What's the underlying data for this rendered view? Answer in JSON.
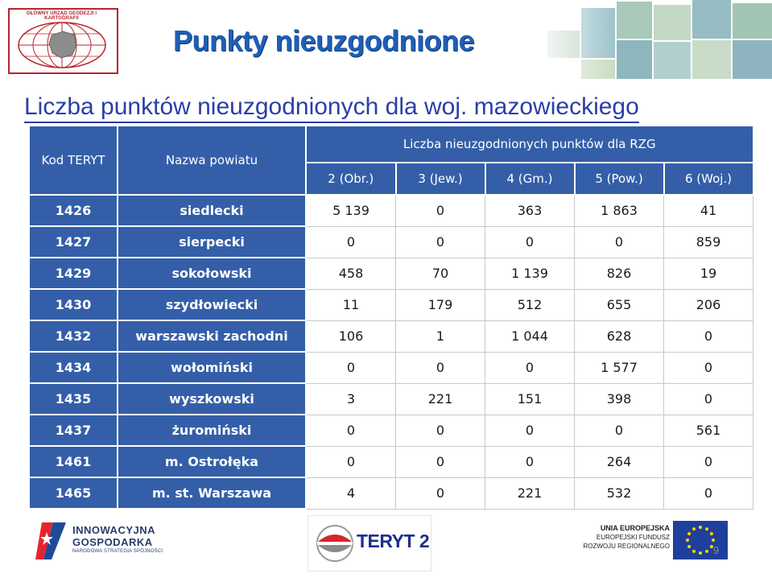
{
  "header": {
    "logo_caption": "GŁÓWNY URZĄD GEODEZJI I KARTOGRAFII",
    "title": "Punkty nieuzgodnione",
    "subtitle": "Liczba punktów nieuzgodnionych dla woj. mazowieckiego"
  },
  "table": {
    "col_kod": "Kod TERYT",
    "col_nazwa": "Nazwa powiatu",
    "group_label": "Liczba nieuzgodnionych punktów dla RZG",
    "sub_columns": [
      "2 (Obr.)",
      "3 (Jew.)",
      "4 (Gm.)",
      "5 (Pow.)",
      "6 (Woj.)"
    ],
    "rows": [
      {
        "kod": "1426",
        "nazwa": "siedlecki",
        "values": [
          "5 139",
          "0",
          "363",
          "1 863",
          "41"
        ]
      },
      {
        "kod": "1427",
        "nazwa": "sierpecki",
        "values": [
          "0",
          "0",
          "0",
          "0",
          "859"
        ]
      },
      {
        "kod": "1429",
        "nazwa": "sokołowski",
        "values": [
          "458",
          "70",
          "1 139",
          "826",
          "19"
        ]
      },
      {
        "kod": "1430",
        "nazwa": "szydłowiecki",
        "values": [
          "11",
          "179",
          "512",
          "655",
          "206"
        ]
      },
      {
        "kod": "1432",
        "nazwa": "warszawski zachodni",
        "values": [
          "106",
          "1",
          "1 044",
          "628",
          "0"
        ]
      },
      {
        "kod": "1434",
        "nazwa": "wołomiński",
        "values": [
          "0",
          "0",
          "0",
          "1 577",
          "0"
        ]
      },
      {
        "kod": "1435",
        "nazwa": "wyszkowski",
        "values": [
          "3",
          "221",
          "151",
          "398",
          "0"
        ]
      },
      {
        "kod": "1437",
        "nazwa": "żuromiński",
        "values": [
          "0",
          "0",
          "0",
          "0",
          "561"
        ]
      },
      {
        "kod": "1461",
        "nazwa": "m. Ostrołęka",
        "values": [
          "0",
          "0",
          "0",
          "264",
          "0"
        ]
      },
      {
        "kod": "1465",
        "nazwa": "m. st. Warszawa",
        "values": [
          "4",
          "0",
          "221",
          "532",
          "0"
        ]
      }
    ]
  },
  "footer": {
    "ig_line1": "INNOWACYJNA",
    "ig_line2": "GOSPODARKA",
    "ig_line3": "NARODOWA STRATEGIA SPÓJNOŚCI",
    "teryt_logo": "TERYT 2",
    "ue_line1": "UNIA EUROPEJSKA",
    "ue_line2": "EUROPEJSKI FUNDUSZ",
    "ue_line3": "ROZWOJU REGIONALNEGO",
    "page_number": "9"
  },
  "colors": {
    "header_blue": "#345fa8",
    "title_blue": "#1f5fb5",
    "subtitle_blue": "#2a3fa6",
    "logo_red": "#b8242a"
  }
}
